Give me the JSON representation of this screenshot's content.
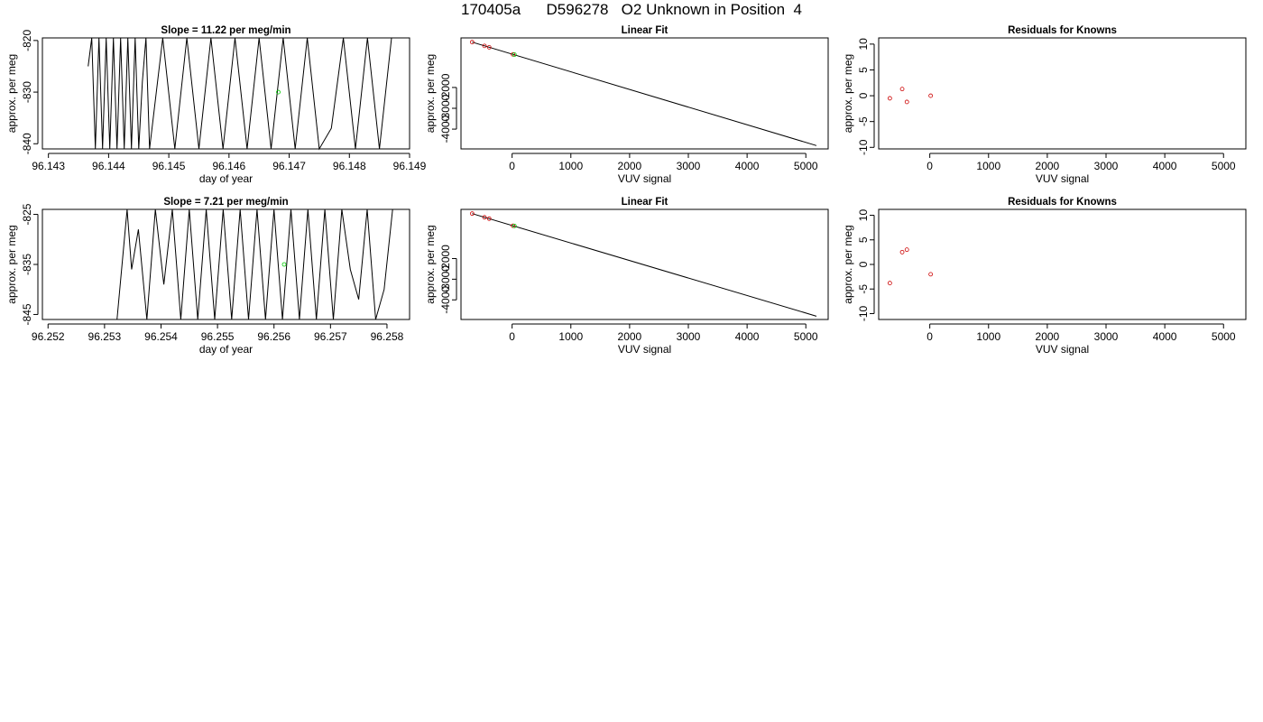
{
  "page": {
    "title": "170405a      D596278   O2 Unknown in Position  4"
  },
  "colors": {
    "line": "#000000",
    "known_point": "#cc0000",
    "unknown_point": "#00cc00"
  },
  "chart_data": [
    {
      "type": "line",
      "title": "Slope =  11.22  per meg/min",
      "xlabel": "day of year",
      "ylabel": "approx. per meg",
      "xlim": [
        96.1429,
        96.149
      ],
      "ylim": [
        -841,
        -819.5
      ],
      "xticks": [
        "96.143",
        "96.144",
        "96.145",
        "96.146",
        "96.147",
        "96.148",
        "96.149"
      ],
      "yticks": [
        "-840",
        "-830",
        "-820"
      ],
      "series": [
        {
          "x": [
            96.14366,
            96.14372,
            96.14378,
            96.14384,
            96.1439,
            96.14396,
            96.14402,
            96.14408,
            96.14414,
            96.1442,
            96.14426,
            96.14432,
            96.14438,
            96.14444,
            96.1445,
            96.14456,
            96.14462,
            96.14468,
            96.1449,
            96.1451,
            96.1453,
            96.1455,
            96.1457,
            96.1459,
            96.1461,
            96.1463,
            96.1465,
            96.1467,
            96.1469,
            96.1471,
            96.1473,
            96.1475,
            96.1477,
            96.1479,
            96.1481,
            96.1483,
            96.1485,
            96.1487
          ],
          "y": [
            -825,
            -819.5,
            -841,
            -819.5,
            -841,
            -819.5,
            -841,
            -819.5,
            -841,
            -819.5,
            -841,
            -819.5,
            -841,
            -819.5,
            -841,
            -828,
            -819.5,
            -841,
            -819.5,
            -841,
            -819.5,
            -841,
            -819.5,
            -841,
            -819.5,
            -841,
            -819.5,
            -841,
            -819.5,
            -841,
            -819.5,
            -841,
            -837,
            -819.5,
            -841,
            -819.5,
            -841,
            -819.5
          ]
        }
      ],
      "unknown_points": [
        {
          "x": 96.14682,
          "y": -830
        }
      ]
    },
    {
      "type": "scatter",
      "title": "Linear Fit",
      "xlabel": "VUV signal",
      "ylabel": "approx. per meg",
      "xlim": [
        -870,
        5380
      ],
      "ylim": [
        -4950,
        380
      ],
      "xticks": [
        "0",
        "1000",
        "2000",
        "3000",
        "4000",
        "5000"
      ],
      "yticks": [
        "-4000",
        "-3000",
        "-2000"
      ],
      "fit_line": {
        "x": [
          -680,
          5180
        ],
        "y": [
          176,
          -4790
        ]
      },
      "known_points": [
        {
          "x": -680,
          "y": 176
        },
        {
          "x": -470,
          "y": -4
        },
        {
          "x": -390,
          "y": -70
        },
        {
          "x": 15,
          "y": -412
        }
      ],
      "unknown_points": [
        {
          "x": 40,
          "y": -422
        }
      ]
    },
    {
      "type": "scatter",
      "title": "Residuals for Knowns",
      "xlabel": "VUV signal",
      "ylabel": "approx. per meg",
      "xlim": [
        -870,
        5380
      ],
      "ylim": [
        -10.3,
        11.2
      ],
      "xticks": [
        "0",
        "1000",
        "2000",
        "3000",
        "4000",
        "5000"
      ],
      "yticks": [
        "-10",
        "-5",
        "0",
        "5",
        "10"
      ],
      "known_points": [
        {
          "x": -680,
          "y": -0.5
        },
        {
          "x": -470,
          "y": 1.3
        },
        {
          "x": -390,
          "y": -1.2
        },
        {
          "x": 15,
          "y": 0
        }
      ]
    },
    {
      "type": "line",
      "title": "Slope =  7.21  per meg/min",
      "xlabel": "day of year",
      "ylabel": "approx. per meg",
      "xlim": [
        96.2519,
        96.2584
      ],
      "ylim": [
        -846,
        -824
      ],
      "xticks": [
        "96.252",
        "96.253",
        "96.254",
        "96.255",
        "96.256",
        "96.257",
        "96.258"
      ],
      "yticks": [
        "-845",
        "-835",
        "-825"
      ],
      "series": [
        {
          "x": [
            96.25322,
            96.2534,
            96.25348,
            96.2536,
            96.25375,
            96.2539,
            96.25405,
            96.2542,
            96.25435,
            96.2545,
            96.25465,
            96.2548,
            96.25495,
            96.2551,
            96.25525,
            96.2554,
            96.25555,
            96.2557,
            96.25585,
            96.256,
            96.25615,
            96.2563,
            96.25645,
            96.2566,
            96.25675,
            96.2569,
            96.25705,
            96.2572,
            96.25735,
            96.2575,
            96.25765,
            96.2578,
            96.25795,
            96.2581
          ],
          "y": [
            -846,
            -824,
            -836,
            -828,
            -846,
            -824,
            -839,
            -824,
            -846,
            -824,
            -846,
            -824,
            -846,
            -824,
            -846,
            -824,
            -846,
            -824,
            -846,
            -824,
            -846,
            -824,
            -846,
            -824,
            -846,
            -824,
            -846,
            -824,
            -836,
            -842,
            -824,
            -846,
            -840,
            -824
          ]
        }
      ],
      "unknown_points": [
        {
          "x": 96.25618,
          "y": -835
        }
      ]
    },
    {
      "type": "scatter",
      "title": "Linear Fit",
      "xlabel": "VUV signal",
      "ylabel": "approx. per meg",
      "xlim": [
        -870,
        5380
      ],
      "ylim": [
        -4950,
        380
      ],
      "xticks": [
        "0",
        "1000",
        "2000",
        "3000",
        "4000",
        "5000"
      ],
      "yticks": [
        "-4000",
        "-3000",
        "-2000"
      ],
      "fit_line": {
        "x": [
          -680,
          5180
        ],
        "y": [
          176,
          -4790
        ]
      },
      "known_points": [
        {
          "x": -680,
          "y": 176
        },
        {
          "x": -470,
          "y": -4
        },
        {
          "x": -390,
          "y": -70
        },
        {
          "x": 15,
          "y": -412
        }
      ],
      "unknown_points": [
        {
          "x": 40,
          "y": -422
        }
      ]
    },
    {
      "type": "scatter",
      "title": "Residuals for Knowns",
      "xlabel": "VUV signal",
      "ylabel": "approx. per meg",
      "xlim": [
        -870,
        5380
      ],
      "ylim": [
        -11.2,
        11.2
      ],
      "xticks": [
        "0",
        "1000",
        "2000",
        "3000",
        "4000",
        "5000"
      ],
      "yticks": [
        "-10",
        "-5",
        "0",
        "5",
        "10"
      ],
      "known_points": [
        {
          "x": -680,
          "y": -3.8
        },
        {
          "x": -470,
          "y": 2.5
        },
        {
          "x": -390,
          "y": 3.0
        },
        {
          "x": 15,
          "y": -2.0
        }
      ]
    }
  ]
}
